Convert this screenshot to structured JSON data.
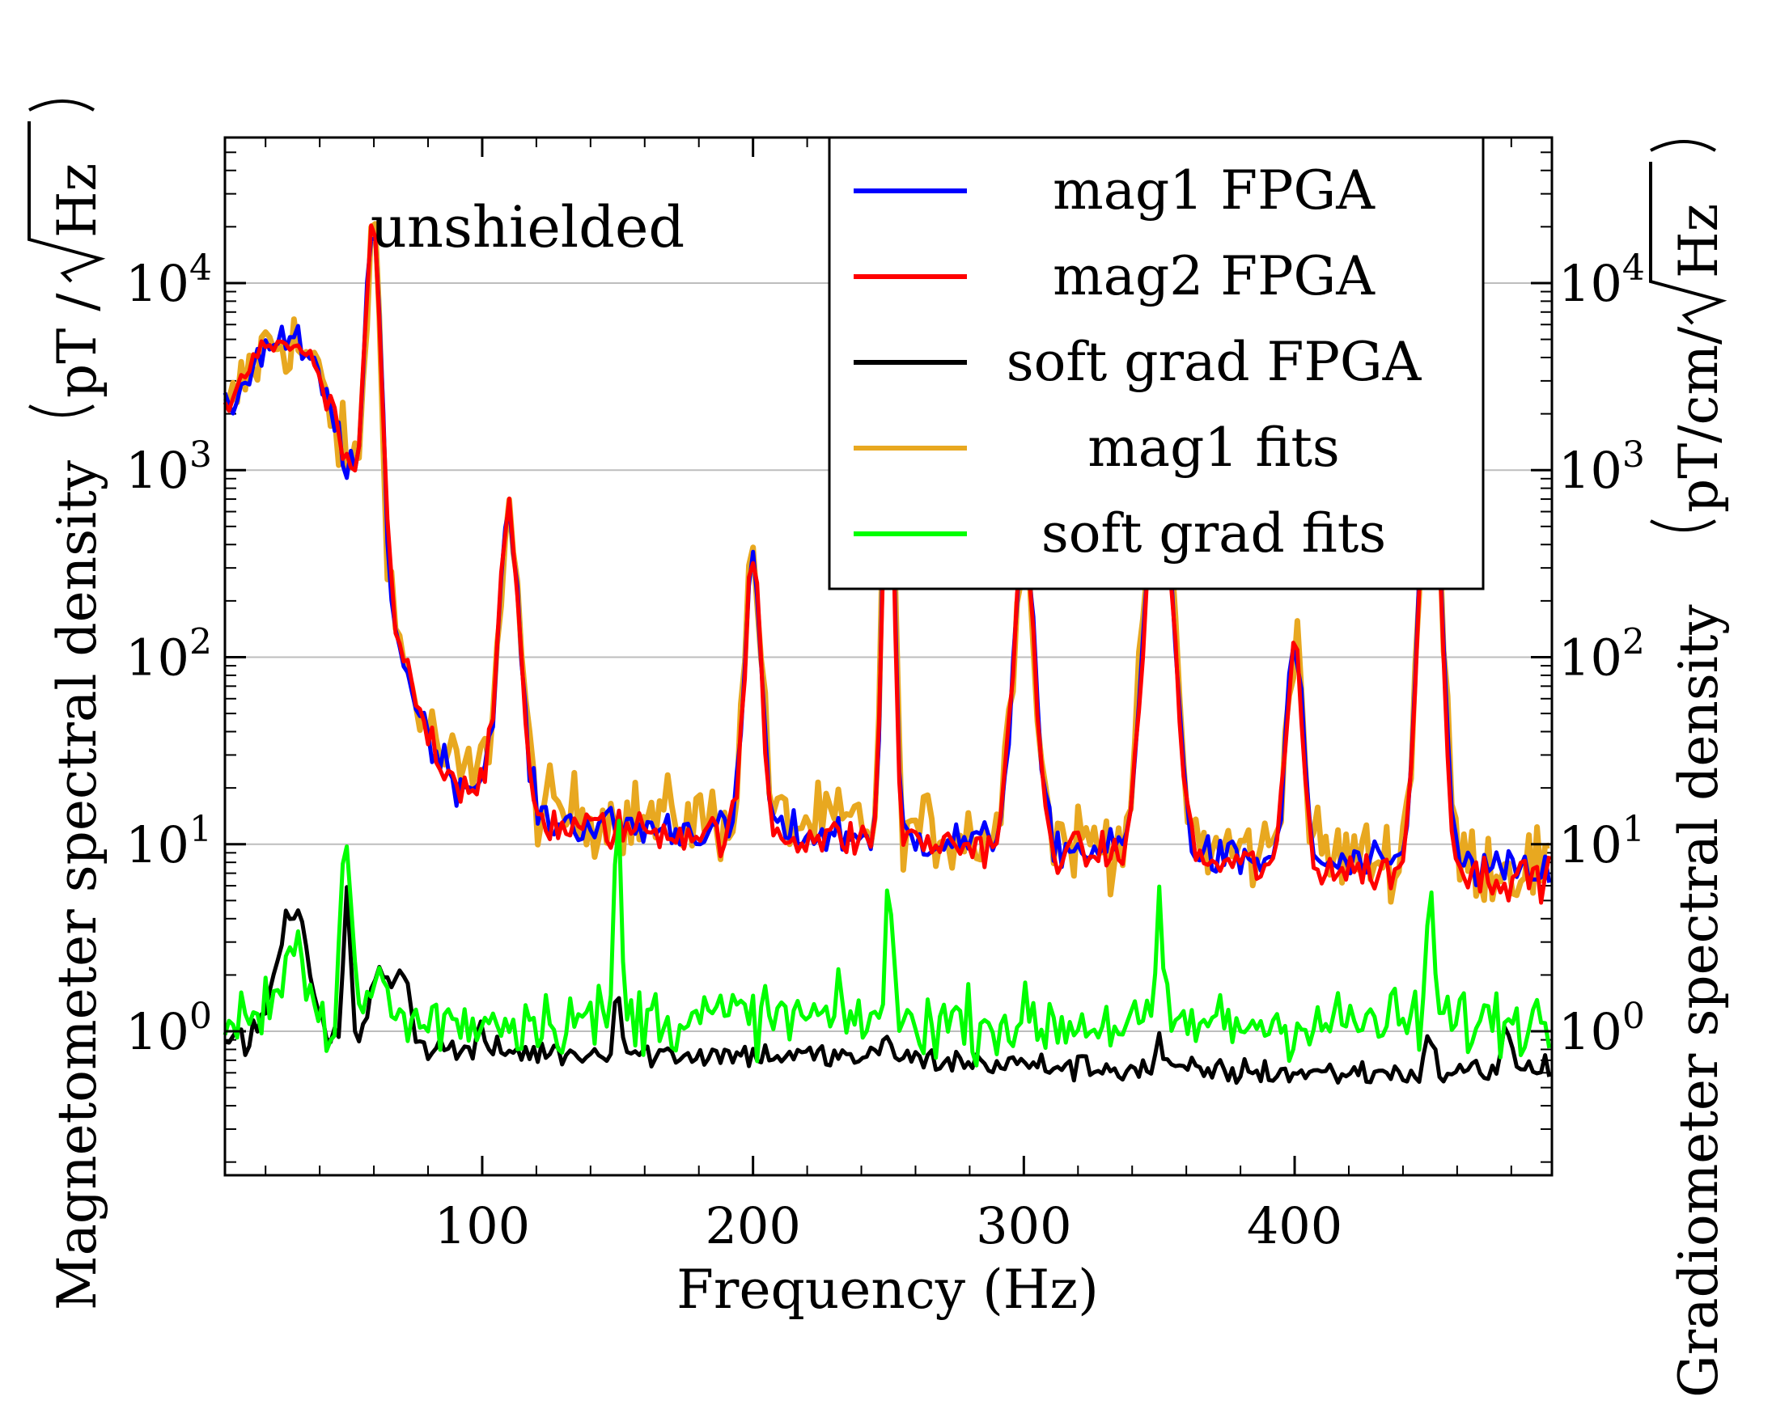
{
  "chart_data": {
    "type": "line",
    "annotation": "unshielded",
    "xlabel": "Frequency (Hz)",
    "ylabel_left_text": "Magnetometer spectral density",
    "ylabel_left_unit_prefix": "pT /",
    "ylabel_left_unit_sqrt": "Hz",
    "ylabel_right_text": "Gradiometer spectral density",
    "ylabel_right_unit_prefix": "pT/cm/",
    "ylabel_right_unit_sqrt": "Hz",
    "xlim": [
      5,
      495
    ],
    "ylim": [
      0.17,
      60000
    ],
    "x_ticks": [
      100,
      200,
      300,
      400
    ],
    "x_tick_labels": [
      "100",
      "200",
      "300",
      "400"
    ],
    "y_ticks": [
      1,
      10,
      100,
      1000,
      10000
    ],
    "y_tick_base": "10",
    "y_tick_exponents": [
      "0",
      "1",
      "2",
      "3",
      "4"
    ],
    "grid": "horizontal at decades",
    "legend_position": "top-right",
    "series": [
      {
        "name": "mag1 fits",
        "color": "#E8A820",
        "baseline": [
          [
            5,
            75
          ],
          [
            15,
            55
          ],
          [
            25,
            40
          ],
          [
            35,
            32
          ],
          [
            45,
            28
          ],
          [
            60,
            24
          ],
          [
            70,
            18
          ],
          [
            80,
            13
          ],
          [
            90,
            11
          ],
          [
            100,
            12
          ],
          [
            110,
            9
          ],
          [
            130,
            8.5
          ],
          [
            160,
            8
          ],
          [
            200,
            8
          ],
          [
            250,
            7.5
          ],
          [
            300,
            7
          ],
          [
            350,
            6.5
          ],
          [
            400,
            6
          ],
          [
            450,
            5.6
          ],
          [
            495,
            5.2
          ]
        ],
        "noise": 0.24,
        "peaks": [
          [
            30,
            25,
            80
          ],
          [
            50,
            3300,
            1.2
          ],
          [
            60,
            3,
            55
          ],
          [
            100,
            160,
            1.2
          ],
          [
            110,
            4,
            35
          ],
          [
            150,
            1600,
            1.2
          ],
          [
            200,
            3,
            30
          ],
          [
            250,
            2,
            330
          ],
          [
            300,
            4,
            45
          ],
          [
            350,
            5,
            220
          ],
          [
            400,
            3,
            16
          ],
          [
            450,
            4,
            330
          ]
        ]
      },
      {
        "name": "mag1 FPGA",
        "color": "#0000FF",
        "baseline": [
          [
            5,
            80
          ],
          [
            15,
            55
          ],
          [
            25,
            40
          ],
          [
            35,
            32
          ],
          [
            45,
            28
          ],
          [
            60,
            24
          ],
          [
            70,
            18
          ],
          [
            80,
            12.5
          ],
          [
            90,
            10
          ],
          [
            100,
            11
          ],
          [
            110,
            8.5
          ],
          [
            130,
            7.5
          ],
          [
            160,
            7.2
          ],
          [
            200,
            7
          ],
          [
            250,
            6.8
          ],
          [
            300,
            6.4
          ],
          [
            350,
            5.8
          ],
          [
            400,
            5.4
          ],
          [
            450,
            5.1
          ],
          [
            495,
            4.9
          ]
        ],
        "noise": 0.12,
        "peaks": [
          [
            30,
            25,
            80
          ],
          [
            50,
            3100,
            1.2
          ],
          [
            60,
            3,
            55
          ],
          [
            100,
            150,
            1.2
          ],
          [
            110,
            4,
            35
          ],
          [
            150,
            1550,
            1.2
          ],
          [
            200,
            3,
            30
          ],
          [
            250,
            2,
            320
          ],
          [
            300,
            4,
            42
          ],
          [
            350,
            5,
            200
          ],
          [
            400,
            3,
            15
          ],
          [
            450,
            4,
            320
          ]
        ]
      },
      {
        "name": "mag2 FPGA",
        "color": "#FF0000",
        "baseline": [
          [
            5,
            80
          ],
          [
            15,
            55
          ],
          [
            25,
            40
          ],
          [
            35,
            32
          ],
          [
            45,
            28
          ],
          [
            60,
            24
          ],
          [
            70,
            18
          ],
          [
            80,
            12.5
          ],
          [
            90,
            10
          ],
          [
            100,
            11
          ],
          [
            110,
            8.3
          ],
          [
            130,
            7.2
          ],
          [
            160,
            7
          ],
          [
            200,
            6.8
          ],
          [
            250,
            6.5
          ],
          [
            300,
            6.1
          ],
          [
            350,
            5.5
          ],
          [
            400,
            5.1
          ],
          [
            450,
            4.8
          ],
          [
            495,
            4.6
          ]
        ],
        "noise": 0.12,
        "peaks": [
          [
            30,
            25,
            80
          ],
          [
            50,
            3100,
            1.2
          ],
          [
            60,
            3,
            55
          ],
          [
            100,
            150,
            1.2
          ],
          [
            110,
            4,
            35
          ],
          [
            150,
            1550,
            1.2
          ],
          [
            200,
            3,
            30
          ],
          [
            250,
            2,
            320
          ],
          [
            300,
            4,
            42
          ],
          [
            350,
            5,
            200
          ],
          [
            400,
            3,
            15
          ],
          [
            450,
            4,
            320
          ]
        ]
      },
      {
        "name": "soft grad FPGA",
        "color": "#000000",
        "baseline": [
          [
            5,
            0.95
          ],
          [
            20,
            0.85
          ],
          [
            50,
            0.88
          ],
          [
            70,
            0.85
          ],
          [
            100,
            0.78
          ],
          [
            150,
            0.76
          ],
          [
            200,
            0.75
          ],
          [
            250,
            0.72
          ],
          [
            300,
            0.66
          ],
          [
            350,
            0.62
          ],
          [
            400,
            0.6
          ],
          [
            450,
            0.6
          ],
          [
            495,
            0.64
          ]
        ],
        "noise": 0.08,
        "peaks": [
          [
            30,
            6,
            5
          ],
          [
            50,
            1.3,
            6
          ],
          [
            62,
            3,
            2.5
          ],
          [
            70,
            3,
            2.6
          ],
          [
            100,
            1.2,
            1.3
          ],
          [
            150,
            1.4,
            2.2
          ],
          [
            250,
            1.3,
            1.4
          ],
          [
            350,
            1.2,
            1.5
          ],
          [
            450,
            1.3,
            1.6
          ],
          [
            478,
            1.5,
            1.8
          ]
        ]
      },
      {
        "name": "soft grad fits",
        "color": "#00FF00",
        "baseline": [
          [
            5,
            1.05
          ],
          [
            50,
            1.1
          ],
          [
            100,
            1.15
          ],
          [
            200,
            1.2
          ],
          [
            300,
            1.1
          ],
          [
            400,
            1.1
          ],
          [
            495,
            1.15
          ]
        ],
        "noise": 0.2,
        "peaks": [
          [
            30,
            4,
            3.5
          ],
          [
            50,
            2,
            8.5
          ],
          [
            62,
            3,
            1.8
          ],
          [
            150,
            1.2,
            12
          ],
          [
            250,
            1.2,
            5.5
          ],
          [
            350,
            1.2,
            3.8
          ],
          [
            450,
            1.2,
            5.8
          ]
        ]
      }
    ],
    "legend_order": [
      "mag1 FPGA",
      "mag2 FPGA",
      "soft grad FPGA",
      "mag1 fits",
      "soft grad fits"
    ]
  }
}
